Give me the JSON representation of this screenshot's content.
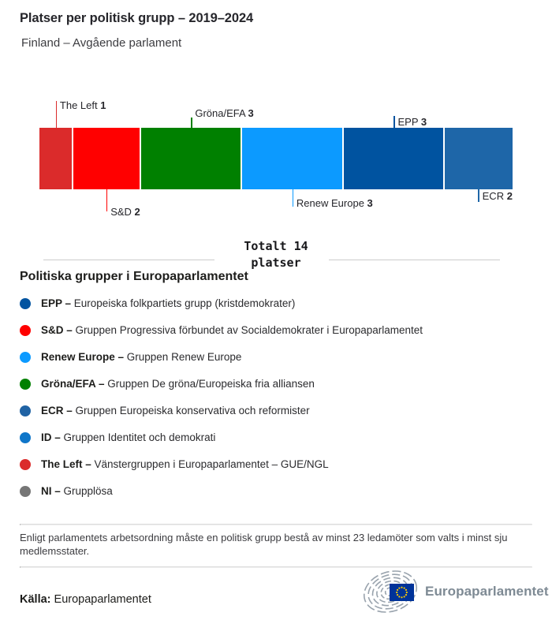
{
  "header": {
    "title": "Platser per politisk grupp – 2019–2024",
    "subtitle": "Finland – Avgående parlament"
  },
  "chart_data": {
    "type": "bar",
    "variant": "horizontal-stacked-seats",
    "title": "Platser per politisk grupp – 2019–2024",
    "subtitle": "Finland – Avgående parlament",
    "total_seats": 14,
    "categories": [
      "The Left",
      "S&D",
      "Gröna/EFA",
      "Renew Europe",
      "EPP",
      "ECR"
    ],
    "values": [
      1,
      2,
      3,
      3,
      3,
      2
    ],
    "segments": [
      {
        "name": "The Left",
        "seats": 1,
        "color": "#db2b2b",
        "label_position": "top"
      },
      {
        "name": "S&D",
        "seats": 2,
        "color": "#ff0000",
        "label_position": "bottom"
      },
      {
        "name": "Gröna/EFA",
        "seats": 3,
        "color": "#008000",
        "label_position": "top"
      },
      {
        "name": "Renew Europe",
        "seats": 3,
        "color": "#0c9aff",
        "label_position": "bottom"
      },
      {
        "name": "EPP",
        "seats": 3,
        "color": "#0053a0",
        "label_position": "top"
      },
      {
        "name": "ECR",
        "seats": 2,
        "color": "#1e66a8",
        "label_position": "bottom"
      }
    ],
    "legend_position": "below",
    "grid": false
  },
  "total": {
    "line1": "Totalt 14",
    "line2": "platser"
  },
  "legend": {
    "heading": "Politiska grupper i Europaparlamentet",
    "items": [
      {
        "abbr": "EPP –",
        "desc": "Europeiska folkpartiets grupp (kristdemokrater)",
        "color": "#0053a0"
      },
      {
        "abbr": "S&D –",
        "desc": "Gruppen Progressiva förbundet av Socialdemokrater i Europaparlamentet",
        "color": "#ff0000"
      },
      {
        "abbr": "Renew Europe –",
        "desc": "Gruppen Renew Europe",
        "color": "#0c9aff"
      },
      {
        "abbr": "Gröna/EFA –",
        "desc": "Gruppen De gröna/Europeiska fria alliansen",
        "color": "#008000"
      },
      {
        "abbr": "ECR –",
        "desc": "Gruppen Europeiska konservativa och reformister",
        "color": "#2063a4"
      },
      {
        "abbr": "ID –",
        "desc": "Gruppen Identitet och demokrati",
        "color": "#0f76c9"
      },
      {
        "abbr": "The Left –",
        "desc": "Vänstergruppen i Europaparlamentet – GUE/NGL",
        "color": "#db2b2b"
      },
      {
        "abbr": "NI –",
        "desc": "Grupplösa",
        "color": "#767676"
      }
    ]
  },
  "footnote": {
    "text": "Enligt parlamentets arbetsordning måste en politisk grupp bestå av minst 23 ledamöter som valts i minst sju medlemsstater."
  },
  "source": {
    "label": "Källa:",
    "value": "Europaparlamentet",
    "logo_text": "Europaparlamentet"
  },
  "colors": {
    "eu_flag_blue": "#003399",
    "eu_star_yellow": "#ffcc00",
    "logo_gray": "#99a3ad",
    "divider_gray": "#cccccc"
  }
}
